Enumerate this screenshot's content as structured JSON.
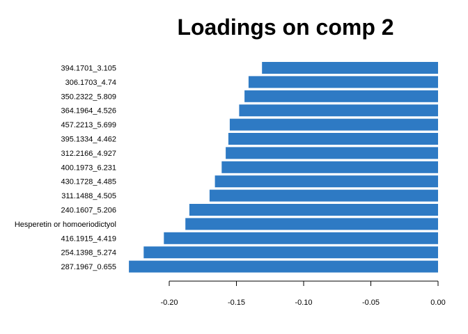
{
  "chart_data": {
    "type": "bar",
    "orientation": "horizontal",
    "title": "Loadings on comp 2",
    "xlabel": "",
    "ylabel": "",
    "categories": [
      "394.1701_3.105",
      "306.1703_4.74",
      "350.2322_5.809",
      "364.1964_4.526",
      "457.2213_5.699",
      "395.1334_4.462",
      "312.2166_4.927",
      "400.1973_6.231",
      "430.1728_4.485",
      "311.1488_4.505",
      "240.1607_5.206",
      "Hesperetin or homoeriodictyol",
      "416.1915_4.419",
      "254.1398_5.274",
      "287.1967_0.655"
    ],
    "values": [
      -0.131,
      -0.141,
      -0.144,
      -0.148,
      -0.155,
      -0.156,
      -0.158,
      -0.161,
      -0.166,
      -0.17,
      -0.185,
      -0.188,
      -0.204,
      -0.219,
      -0.23
    ],
    "xlim": [
      -0.23,
      0.0
    ],
    "xticks": [
      -0.2,
      -0.15,
      -0.1,
      -0.05,
      0.0
    ],
    "xtick_labels": [
      "-0.20",
      "-0.15",
      "-0.10",
      "-0.05",
      "0.00"
    ],
    "bar_color": "#2E7AC4",
    "grid": false,
    "legend": "none"
  }
}
